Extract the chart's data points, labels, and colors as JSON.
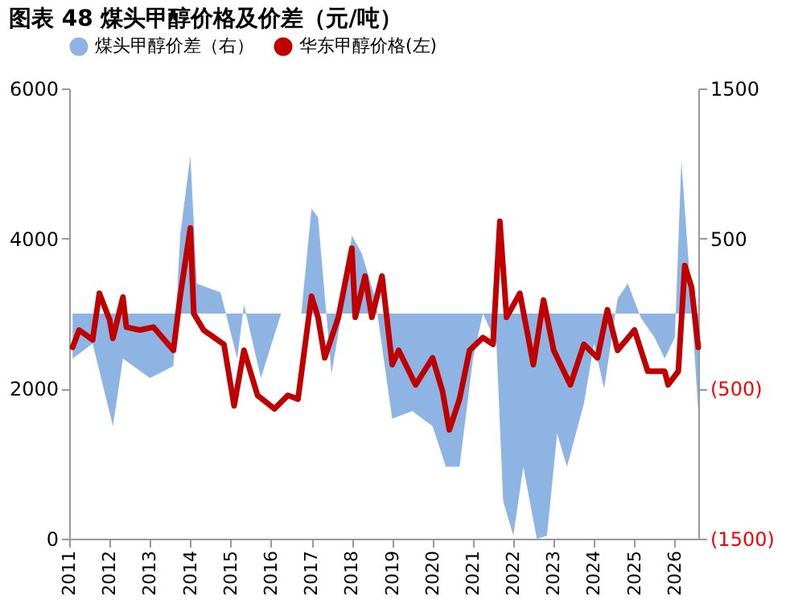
{
  "chart_data": {
    "type": "line",
    "title": "图表 48 煤头甲醇价格及价差（元/吨）",
    "xlim": [
      "2011-01",
      "2026-08"
    ],
    "xticks": [
      "2011",
      "2012",
      "2013",
      "2014",
      "2015",
      "2016",
      "2017",
      "2018",
      "2019",
      "2020",
      "2021",
      "2022",
      "2023",
      "2024",
      "2025",
      "2026"
    ],
    "ylim": [
      0,
      6000
    ],
    "yticks": [
      0,
      2000,
      4000,
      6000
    ],
    "y2lim": [
      -1500,
      1500
    ],
    "y2ticks": [
      1500,
      500,
      {
        "value": -500,
        "label": "(500)"
      },
      {
        "value": -1500,
        "label": "(1500)"
      }
    ],
    "legend": "top",
    "grid": false,
    "series": [
      {
        "name": "煤头甲醇价差（右）",
        "type": "area",
        "axis": "y2",
        "color": "#8db4e2",
        "x": [
          "2011-02",
          "2011-08",
          "2012-02",
          "2012-05",
          "2013-01",
          "2013-08",
          "2013-10",
          "2014-01",
          "2014-03",
          "2014-10",
          "2015-03",
          "2015-05",
          "2015-10",
          "2016-04",
          "2016-10",
          "2017-01",
          "2017-03",
          "2017-07",
          "2017-10",
          "2018-01",
          "2018-04",
          "2018-08",
          "2019-01",
          "2019-07",
          "2020-01",
          "2020-05",
          "2020-09",
          "2021-01",
          "2021-04",
          "2021-08",
          "2021-10",
          "2022-01",
          "2022-04",
          "2022-08",
          "2022-11",
          "2023-02",
          "2023-05",
          "2023-10",
          "2024-01",
          "2024-04",
          "2024-08",
          "2024-11",
          "2025-03",
          "2025-07",
          "2025-10",
          "2026-01",
          "2026-03",
          "2026-05",
          "2026-08"
        ],
        "values": [
          -300,
          -200,
          -750,
          -300,
          -430,
          -350,
          520,
          1050,
          200,
          140,
          -300,
          60,
          -430,
          0,
          0,
          700,
          640,
          -400,
          0,
          520,
          400,
          100,
          -700,
          -650,
          -750,
          -1020,
          -1020,
          -300,
          0,
          -200,
          -1250,
          -1480,
          -1020,
          -1500,
          -1480,
          -800,
          -1020,
          -600,
          -200,
          -500,
          100,
          200,
          -30,
          -160,
          -300,
          -160,
          1020,
          390,
          -650
        ]
      },
      {
        "name": "华东甲醇价格(左)",
        "axis": "y",
        "color": "#c00000",
        "x": [
          "2011-02",
          "2011-04",
          "2011-08",
          "2011-10",
          "2012-01",
          "2012-02",
          "2012-05",
          "2012-06",
          "2012-10",
          "2013-02",
          "2013-08",
          "2013-10",
          "2014-01",
          "2014-02",
          "2014-05",
          "2014-11",
          "2015-02",
          "2015-05",
          "2015-09",
          "2016-02",
          "2016-06",
          "2016-09",
          "2017-01",
          "2017-03",
          "2017-05",
          "2017-09",
          "2018-01",
          "2018-02",
          "2018-05",
          "2018-07",
          "2018-10",
          "2019-01",
          "2019-03",
          "2019-08",
          "2020-01",
          "2020-04",
          "2020-06",
          "2020-09",
          "2020-12",
          "2021-04",
          "2021-07",
          "2021-09",
          "2021-11",
          "2022-03",
          "2022-07",
          "2022-10",
          "2023-01",
          "2023-06",
          "2023-10",
          "2024-02",
          "2024-05",
          "2024-08",
          "2025-01",
          "2025-05",
          "2025-10",
          "2025-11",
          "2026-02",
          "2026-04",
          "2026-06",
          "2026-08"
        ],
        "values": [
          2550,
          2780,
          2650,
          3270,
          2920,
          2670,
          3220,
          2820,
          2780,
          2820,
          2510,
          3230,
          4140,
          3000,
          2780,
          2590,
          1770,
          2510,
          1910,
          1730,
          1910,
          1860,
          3230,
          2950,
          2410,
          2950,
          3870,
          2950,
          3500,
          2950,
          3500,
          2320,
          2510,
          2050,
          2410,
          1960,
          1450,
          1860,
          2510,
          2680,
          2590,
          4230,
          2950,
          3270,
          2320,
          3180,
          2510,
          2050,
          2590,
          2410,
          3050,
          2510,
          2780,
          2230,
          2230,
          2050,
          2230,
          3640,
          3350,
          2550
        ]
      }
    ]
  }
}
